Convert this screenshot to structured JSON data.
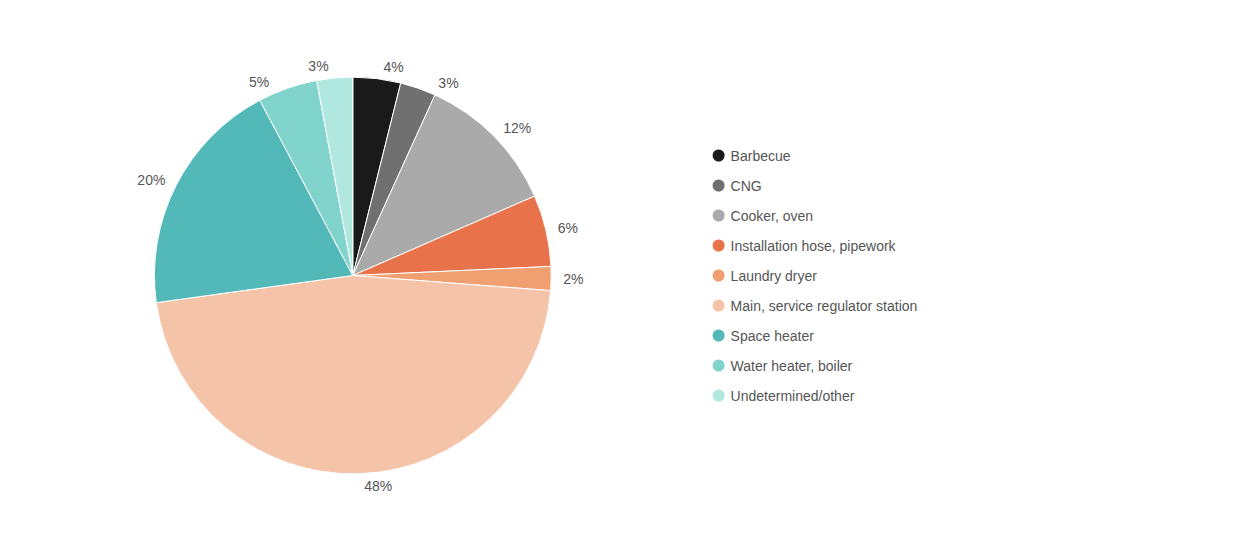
{
  "chart_data": {
    "type": "pie",
    "categories": [
      "Barbecue",
      "CNG",
      "Cooker, oven",
      "Installation hose, pipework",
      "Laundry dryer",
      "Main, service regulator station",
      "Space heater",
      "Water heater, boiler",
      "Undetermined/other"
    ],
    "values": [
      4,
      3,
      12,
      6,
      2,
      48,
      20,
      5,
      3
    ],
    "value_labels": [
      "4%",
      "3%",
      "12%",
      "6%",
      "2%",
      "48%",
      "20%",
      "5%",
      "3%"
    ],
    "colors": [
      "#1a1a1a",
      "#707070",
      "#aaaaaa",
      "#e8734a",
      "#f0a070",
      "#f5c4a8",
      "#52b8b8",
      "#80d4cc",
      "#b0e8e0"
    ],
    "data_labels": true,
    "legend": "right"
  }
}
